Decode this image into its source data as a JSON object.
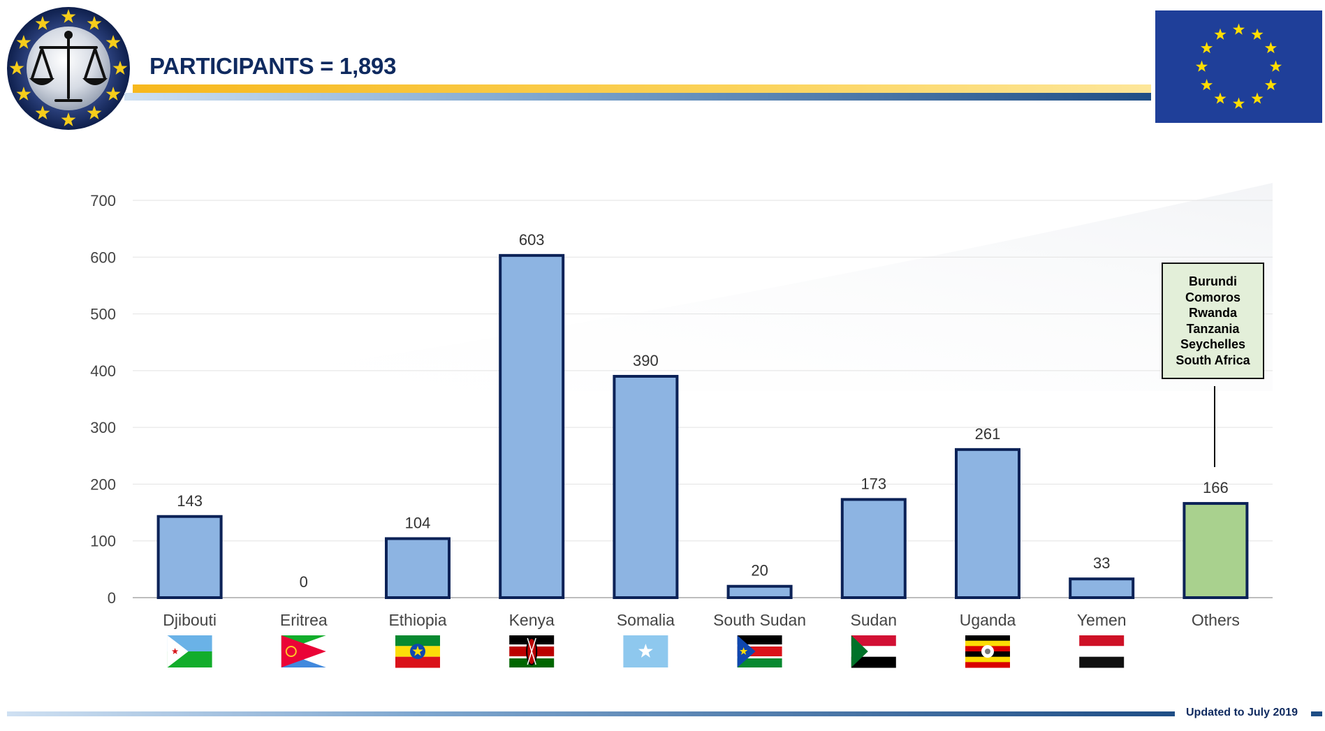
{
  "header": {
    "title": "PARTICIPANTS = 1,893",
    "logo_icon": "scales-of-justice-emblem",
    "flag_icon": "eu-flag"
  },
  "colors": {
    "primary_navy": "#0f2a5f",
    "bar_blue": "#8db4e2",
    "bar_green": "#a9d18e",
    "bar_outline": "#0c2257",
    "accent_gold": "#f7b81d"
  },
  "chart_data": {
    "type": "bar",
    "categories": [
      "Djibouti",
      "Eritrea",
      "Ethiopia",
      "Kenya",
      "Somalia",
      "South Sudan",
      "Sudan",
      "Uganda",
      "Yemen",
      "Others"
    ],
    "values": [
      143,
      0,
      104,
      603,
      390,
      20,
      173,
      261,
      33,
      166
    ],
    "data_labels": [
      "143",
      "0",
      "104",
      "603",
      "390",
      "20",
      "173",
      "261",
      "33",
      "166"
    ],
    "ylim": [
      0,
      700
    ],
    "yticks": [
      0,
      100,
      200,
      300,
      400,
      500,
      600,
      700
    ],
    "grid": true,
    "legend": "none",
    "highlight_category": "Others",
    "flag_icons": [
      "djibouti-flag-icon",
      "eritrea-flag-icon",
      "ethiopia-flag-icon",
      "kenya-flag-icon",
      "somalia-flag-icon",
      "south-sudan-flag-icon",
      "sudan-flag-icon",
      "uganda-flag-icon",
      "yemen-flag-icon",
      ""
    ]
  },
  "others_box": {
    "countries": [
      "Burundi",
      "Comoros",
      "Rwanda",
      "Tanzania",
      "Seychelles",
      "South Africa"
    ]
  },
  "footer": {
    "text": "Updated to July 2019"
  }
}
